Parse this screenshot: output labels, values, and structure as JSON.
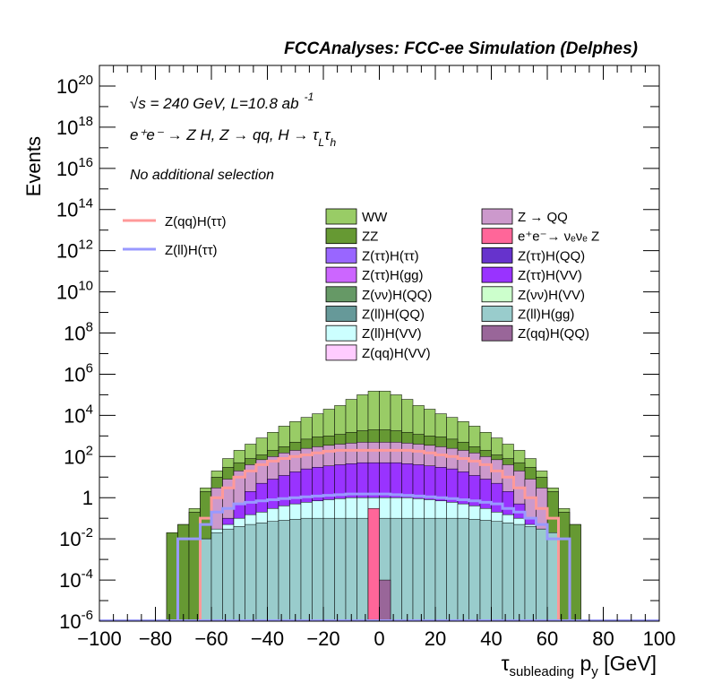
{
  "chart_data": {
    "type": "area",
    "title": "FCCAnalyses: FCC-ee Simulation (Delphes)",
    "ylabel": "Events",
    "xlabel": {
      "main": "τ",
      "sub": "subleading",
      "rest": " p",
      "sub2": "y",
      "unit": " [GeV]"
    },
    "xlim": [
      -100,
      100
    ],
    "ylog": true,
    "ylim": [
      1e-06,
      1e+21
    ],
    "x_ticks": [
      "−100",
      "−80",
      "−60",
      "−40",
      "−20",
      "0",
      "20",
      "40",
      "60",
      "80",
      "100"
    ],
    "x_tick_values": [
      -100,
      -80,
      -60,
      -40,
      -20,
      0,
      20,
      40,
      60,
      80,
      100
    ],
    "y_ticks": [
      {
        "v": 1e+20,
        "base": "10",
        "exp": "20"
      },
      {
        "v": 1e+18,
        "base": "10",
        "exp": "18"
      },
      {
        "v": 1e+16,
        "base": "10",
        "exp": "16"
      },
      {
        "v": 100000000000000.0,
        "base": "10",
        "exp": "14"
      },
      {
        "v": 1000000000000.0,
        "base": "10",
        "exp": "12"
      },
      {
        "v": 10000000000.0,
        "base": "10",
        "exp": "10"
      },
      {
        "v": 100000000.0,
        "base": "10",
        "exp": "8"
      },
      {
        "v": 1000000.0,
        "base": "10",
        "exp": "6"
      },
      {
        "v": 10000.0,
        "base": "10",
        "exp": "4"
      },
      {
        "v": 100.0,
        "base": "10",
        "exp": "2"
      },
      {
        "v": 1,
        "base": "1",
        "exp": ""
      },
      {
        "v": 0.01,
        "base": "10",
        "exp": "-2"
      },
      {
        "v": 0.0001,
        "base": "10",
        "exp": "-4"
      },
      {
        "v": 1e-06,
        "base": "10",
        "exp": "-6"
      }
    ],
    "annotations": {
      "line1": "√s = 240 GeV, L=10.8 ab",
      "line1_exp": "-1",
      "line2": "e⁺e⁻ → Z H, Z  → qq, H  → τ",
      "line2_sub1": "L",
      "line2_tau": "τ",
      "line2_sub2": "h",
      "line3": "No additional selection"
    },
    "stack_legend": [
      {
        "label": "WW",
        "color": "#99cc66"
      },
      {
        "label": "Z → QQ",
        "color": "#cc99cc"
      },
      {
        "label": "ZZ",
        "color": "#669933"
      },
      {
        "label": "e⁺e⁻→ νₑνₑ Z",
        "color": "#ff6699"
      },
      {
        "label": "Z(ττ)H(ττ)",
        "color": "#9966ff"
      },
      {
        "label": "Z(ττ)H(QQ)",
        "color": "#6633cc"
      },
      {
        "label": "Z(ττ)H(gg)",
        "color": "#cc66ff"
      },
      {
        "label": "Z(ττ)H(VV)",
        "color": "#9933ff"
      },
      {
        "label": "Z(νν)H(QQ)",
        "color": "#669966"
      },
      {
        "label": "Z(νν)H(VV)",
        "color": "#ccffcc"
      },
      {
        "label": "Z(ll)H(QQ)",
        "color": "#669999"
      },
      {
        "label": "Z(ll)H(gg)",
        "color": "#99cccc"
      },
      {
        "label": "Z(ll)H(VV)",
        "color": "#ccffff"
      },
      {
        "label": "Z(qq)H(QQ)",
        "color": "#996699"
      },
      {
        "label": "Z(qq)H(VV)",
        "color": "#ffccff"
      }
    ],
    "line_legend": [
      {
        "label": "Z(qq)H(ττ)",
        "color": "#ff9999"
      },
      {
        "label": "Z(ll)H(ττ)",
        "color": "#9999ff"
      }
    ],
    "bin_edges": [
      -100,
      -96,
      -92,
      -88,
      -84,
      -80,
      -76,
      -72,
      -68,
      -64,
      -60,
      -56,
      -52,
      -48,
      -44,
      -40,
      -36,
      -32,
      -28,
      -24,
      -20,
      -16,
      -12,
      -8,
      -4,
      0,
      4,
      8,
      12,
      16,
      20,
      24,
      28,
      32,
      36,
      40,
      44,
      48,
      52,
      56,
      60,
      64,
      68,
      72,
      76,
      80,
      84,
      88,
      92,
      96,
      100
    ],
    "stack_envelopes": [
      {
        "name": "WW",
        "color": "#99cc66",
        "values": [
          null,
          null,
          null,
          null,
          null,
          null,
          0.02,
          0.05,
          0.3,
          3,
          20,
          80,
          200,
          400,
          800,
          1500,
          3000,
          5000,
          8000,
          12000,
          20000,
          30000,
          60000,
          100000,
          150000,
          150000,
          100000,
          60000,
          30000,
          20000,
          12000,
          8000,
          5000,
          3000,
          1500,
          800,
          400,
          200,
          80,
          20,
          3,
          0.3,
          0.05,
          null,
          null,
          null,
          null,
          null,
          null,
          null
        ]
      },
      {
        "name": "ZZ",
        "color": "#669933",
        "values": [
          null,
          null,
          null,
          null,
          null,
          null,
          0.02,
          0.05,
          0.2,
          2,
          10,
          30,
          50,
          80,
          120,
          200,
          300,
          500,
          700,
          900,
          1000,
          1200,
          1500,
          1800,
          2000,
          2000,
          1800,
          1500,
          1200,
          1000,
          900,
          700,
          500,
          300,
          200,
          120,
          80,
          50,
          30,
          10,
          2,
          0.2,
          0.05,
          null,
          null,
          null,
          null,
          null,
          null,
          null
        ]
      },
      {
        "name": "Z → QQ",
        "color": "#cc99cc",
        "values": [
          null,
          null,
          null,
          null,
          null,
          null,
          null,
          null,
          null,
          null,
          3,
          8,
          20,
          40,
          70,
          100,
          150,
          200,
          250,
          300,
          350,
          400,
          450,
          500,
          500,
          500,
          500,
          450,
          400,
          350,
          300,
          250,
          200,
          150,
          100,
          70,
          40,
          20,
          8,
          3,
          null,
          null,
          null,
          null,
          null,
          null,
          null,
          null,
          null,
          null
        ]
      },
      {
        "name": "Z(ττ)H(VV)",
        "color": "#9933ff",
        "values": [
          null,
          null,
          null,
          null,
          null,
          null,
          null,
          null,
          null,
          null,
          null,
          0.1,
          0.5,
          2,
          5,
          8,
          12,
          18,
          25,
          30,
          35,
          40,
          45,
          50,
          50,
          50,
          50,
          45,
          40,
          35,
          30,
          25,
          18,
          12,
          8,
          5,
          2,
          0.5,
          0.1,
          null,
          null,
          null,
          null,
          null,
          null,
          null,
          null,
          null,
          null,
          null
        ]
      },
      {
        "name": "Z(ll)H(VV)",
        "color": "#ccffff",
        "values": [
          null,
          null,
          null,
          null,
          null,
          null,
          null,
          null,
          null,
          0.01,
          0.03,
          0.05,
          0.1,
          0.15,
          0.2,
          0.3,
          0.4,
          0.5,
          0.6,
          0.7,
          0.8,
          0.9,
          1,
          1,
          1,
          1,
          1,
          1,
          0.9,
          0.8,
          0.7,
          0.6,
          0.5,
          0.4,
          0.3,
          0.2,
          0.15,
          0.1,
          0.05,
          0.03,
          0.01,
          null,
          null,
          null,
          null,
          null,
          null,
          null,
          null,
          null
        ]
      },
      {
        "name": "Z(ll)H(gg)",
        "color": "#99cccc",
        "values": [
          null,
          null,
          null,
          null,
          null,
          null,
          null,
          null,
          null,
          0.01,
          0.02,
          0.03,
          0.04,
          0.05,
          0.06,
          0.07,
          0.08,
          0.09,
          0.1,
          0.1,
          0.1,
          0.1,
          0.1,
          0.1,
          0.1,
          0.1,
          0.1,
          0.1,
          0.1,
          0.1,
          0.1,
          0.1,
          0.1,
          0.09,
          0.08,
          0.07,
          0.06,
          0.05,
          0.04,
          0.03,
          0.02,
          null,
          null,
          null,
          null,
          null,
          null,
          null,
          null,
          null
        ]
      }
    ],
    "overlay_lines": [
      {
        "name": "Z(qq)H(ττ)",
        "color": "#ff9999",
        "values": [
          null,
          null,
          null,
          null,
          null,
          null,
          null,
          null,
          null,
          0.1,
          1,
          3,
          10,
          20,
          40,
          60,
          80,
          100,
          120,
          150,
          180,
          200,
          200,
          200,
          200,
          200,
          200,
          200,
          180,
          150,
          120,
          100,
          80,
          60,
          40,
          20,
          10,
          3,
          1,
          0.3,
          0.1,
          null,
          null,
          null,
          null,
          null,
          null,
          null,
          null,
          null
        ]
      },
      {
        "name": "Z(ll)H(ττ)",
        "color": "#9999ff",
        "values": [
          null,
          null,
          null,
          null,
          null,
          null,
          null,
          0.01,
          0.01,
          0.05,
          0.2,
          0.3,
          0.5,
          0.6,
          0.7,
          0.8,
          0.9,
          1,
          1.1,
          1.2,
          1.3,
          1.4,
          1.5,
          1.5,
          1.5,
          1.5,
          1.4,
          1.3,
          1.2,
          1.1,
          1,
          0.9,
          0.8,
          0.7,
          0.6,
          0.5,
          0.3,
          0.2,
          0.1,
          0.05,
          0.01,
          0.01,
          null,
          null,
          null,
          null,
          null,
          null,
          null,
          null
        ]
      }
    ],
    "narrow_bins": [
      {
        "name": "e⁺e⁻→ νₑνₑ Z",
        "color": "#ff6699",
        "x0": -4,
        "x1": 0,
        "value": 0.3
      },
      {
        "name": "Z(qq)H(QQ)",
        "color": "#996699",
        "x0": 0,
        "x1": 4,
        "value": 0.0001
      }
    ]
  }
}
